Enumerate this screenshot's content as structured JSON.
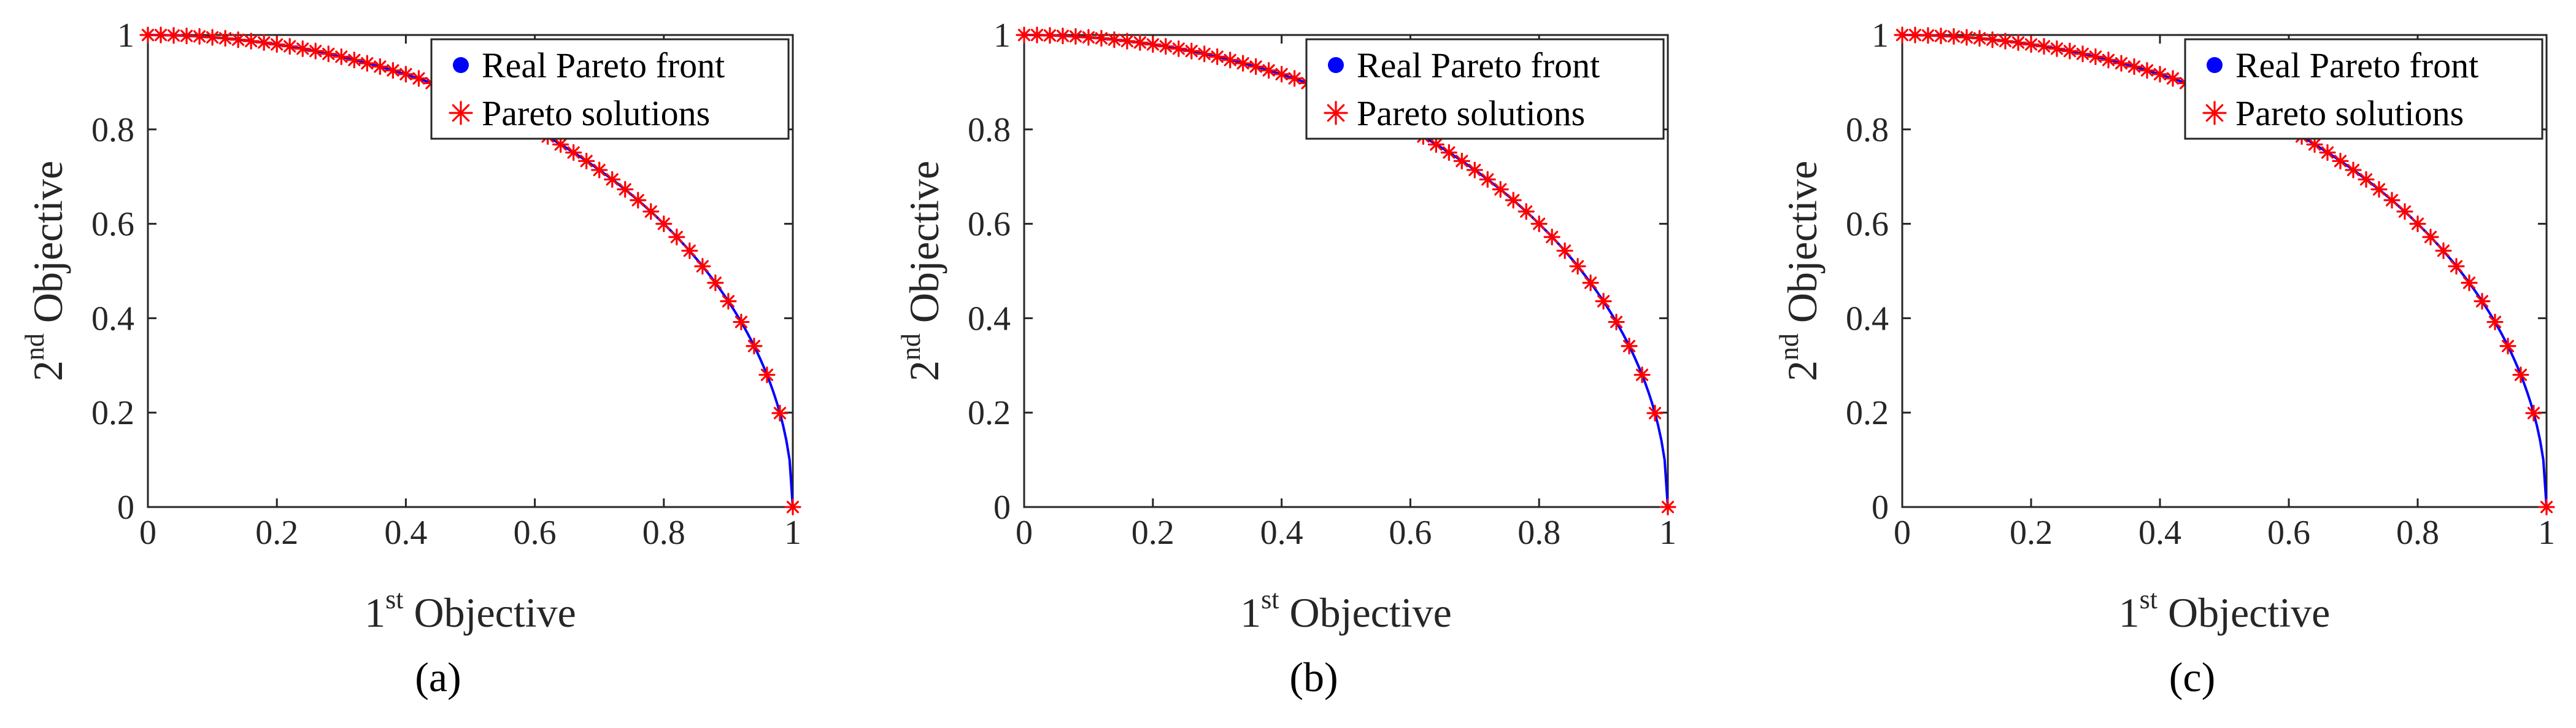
{
  "chart_data": [
    {
      "type": "line",
      "panel_label": "(a)",
      "xlabel": {
        "base": "1",
        "sup": "st",
        "text": " Objective"
      },
      "ylabel": {
        "base": "2",
        "sup": "nd",
        "text": " Objective"
      },
      "xlim": [
        0,
        1
      ],
      "ylim": [
        0,
        1
      ],
      "xticks": [
        "0",
        "0.2",
        "0.4",
        "0.6",
        "0.8",
        "1"
      ],
      "yticks": [
        "0",
        "0.2",
        "0.4",
        "0.6",
        "0.8",
        "1"
      ],
      "legend_position": "top-right",
      "series": [
        {
          "name": "Real Pareto front",
          "kind": "line",
          "color": "#0000ff",
          "function": "y = sqrt(1 - x^2)",
          "x": [
            0,
            0.05,
            0.1,
            0.15,
            0.2,
            0.25,
            0.3,
            0.35,
            0.4,
            0.45,
            0.5,
            0.55,
            0.6,
            0.65,
            0.7,
            0.75,
            0.8,
            0.85,
            0.9,
            0.95,
            1
          ],
          "y": [
            1,
            0.999,
            0.995,
            0.989,
            0.98,
            0.968,
            0.954,
            0.937,
            0.917,
            0.893,
            0.866,
            0.835,
            0.8,
            0.76,
            0.714,
            0.661,
            0.6,
            0.527,
            0.436,
            0.312,
            0
          ]
        },
        {
          "name": "Pareto solutions",
          "kind": "scatter",
          "color": "#ff0000",
          "marker": "asterisk",
          "x": [
            0.0,
            0.02,
            0.04,
            0.06,
            0.08,
            0.1,
            0.12,
            0.14,
            0.16,
            0.18,
            0.2,
            0.22,
            0.24,
            0.26,
            0.28,
            0.3,
            0.32,
            0.34,
            0.36,
            0.38,
            0.4,
            0.42,
            0.44,
            0.46,
            0.48,
            0.5,
            0.52,
            0.54,
            0.56,
            0.58,
            0.6,
            0.62,
            0.64,
            0.66,
            0.68,
            0.7,
            0.72,
            0.74,
            0.76,
            0.78,
            0.8,
            0.82,
            0.84,
            0.86,
            0.88,
            0.9,
            0.92,
            0.94,
            0.96,
            0.98,
            1.0
          ],
          "y": [
            1.0,
            1.0,
            0.999,
            0.998,
            0.997,
            0.995,
            0.993,
            0.99,
            0.987,
            0.984,
            0.98,
            0.976,
            0.971,
            0.966,
            0.96,
            0.954,
            0.947,
            0.94,
            0.933,
            0.925,
            0.917,
            0.908,
            0.898,
            0.888,
            0.877,
            0.866,
            0.854,
            0.842,
            0.828,
            0.815,
            0.8,
            0.785,
            0.768,
            0.751,
            0.733,
            0.714,
            0.694,
            0.673,
            0.65,
            0.626,
            0.6,
            0.572,
            0.543,
            0.51,
            0.475,
            0.436,
            0.392,
            0.341,
            0.28,
            0.199,
            0.0
          ]
        }
      ]
    },
    {
      "type": "line",
      "panel_label": "(b)",
      "xlabel": {
        "base": "1",
        "sup": "st",
        "text": " Objective"
      },
      "ylabel": {
        "base": "2",
        "sup": "nd",
        "text": " Objective"
      },
      "xlim": [
        0,
        1
      ],
      "ylim": [
        0,
        1
      ],
      "xticks": [
        "0",
        "0.2",
        "0.4",
        "0.6",
        "0.8",
        "1"
      ],
      "yticks": [
        "0",
        "0.2",
        "0.4",
        "0.6",
        "0.8",
        "1"
      ],
      "legend_position": "top-right",
      "series": [
        {
          "name": "Real Pareto front",
          "kind": "line",
          "color": "#0000ff",
          "function": "y = sqrt(1 - x^2)",
          "x": [
            0,
            0.05,
            0.1,
            0.15,
            0.2,
            0.25,
            0.3,
            0.35,
            0.4,
            0.45,
            0.5,
            0.55,
            0.6,
            0.65,
            0.7,
            0.75,
            0.8,
            0.85,
            0.9,
            0.95,
            1
          ],
          "y": [
            1,
            0.999,
            0.995,
            0.989,
            0.98,
            0.968,
            0.954,
            0.937,
            0.917,
            0.893,
            0.866,
            0.835,
            0.8,
            0.76,
            0.714,
            0.661,
            0.6,
            0.527,
            0.436,
            0.312,
            0
          ]
        },
        {
          "name": "Pareto solutions",
          "kind": "scatter",
          "color": "#ff0000",
          "marker": "asterisk",
          "x": [
            0.0,
            0.02,
            0.04,
            0.06,
            0.08,
            0.1,
            0.12,
            0.14,
            0.16,
            0.18,
            0.2,
            0.22,
            0.24,
            0.26,
            0.28,
            0.3,
            0.32,
            0.34,
            0.36,
            0.38,
            0.4,
            0.42,
            0.44,
            0.46,
            0.48,
            0.5,
            0.52,
            0.54,
            0.56,
            0.58,
            0.6,
            0.62,
            0.64,
            0.66,
            0.68,
            0.7,
            0.72,
            0.74,
            0.76,
            0.78,
            0.8,
            0.82,
            0.84,
            0.86,
            0.88,
            0.9,
            0.92,
            0.94,
            0.96,
            0.98,
            1.0
          ],
          "y": [
            1.0,
            1.0,
            0.999,
            0.998,
            0.997,
            0.995,
            0.993,
            0.99,
            0.987,
            0.984,
            0.98,
            0.976,
            0.971,
            0.966,
            0.96,
            0.954,
            0.947,
            0.94,
            0.933,
            0.925,
            0.917,
            0.908,
            0.898,
            0.888,
            0.877,
            0.866,
            0.854,
            0.842,
            0.828,
            0.815,
            0.8,
            0.785,
            0.768,
            0.751,
            0.733,
            0.714,
            0.694,
            0.673,
            0.65,
            0.626,
            0.6,
            0.572,
            0.543,
            0.51,
            0.475,
            0.436,
            0.392,
            0.341,
            0.28,
            0.199,
            0.0
          ]
        }
      ]
    },
    {
      "type": "line",
      "panel_label": "(c)",
      "xlabel": {
        "base": "1",
        "sup": "st",
        "text": " Objective"
      },
      "ylabel": {
        "base": "2",
        "sup": "nd",
        "text": " Objective"
      },
      "xlim": [
        0,
        1
      ],
      "ylim": [
        0,
        1
      ],
      "xticks": [
        "0",
        "0.2",
        "0.4",
        "0.6",
        "0.8",
        "1"
      ],
      "yticks": [
        "0",
        "0.2",
        "0.4",
        "0.6",
        "0.8",
        "1"
      ],
      "legend_position": "top-right",
      "series": [
        {
          "name": "Real Pareto front",
          "kind": "line",
          "color": "#0000ff",
          "function": "y = sqrt(1 - x^2)",
          "x": [
            0,
            0.05,
            0.1,
            0.15,
            0.2,
            0.25,
            0.3,
            0.35,
            0.4,
            0.45,
            0.5,
            0.55,
            0.6,
            0.65,
            0.7,
            0.75,
            0.8,
            0.85,
            0.9,
            0.95,
            1
          ],
          "y": [
            1,
            0.999,
            0.995,
            0.989,
            0.98,
            0.968,
            0.954,
            0.937,
            0.917,
            0.893,
            0.866,
            0.835,
            0.8,
            0.76,
            0.714,
            0.661,
            0.6,
            0.527,
            0.436,
            0.312,
            0
          ]
        },
        {
          "name": "Pareto solutions",
          "kind": "scatter",
          "color": "#ff0000",
          "marker": "asterisk",
          "x": [
            0.0,
            0.02,
            0.04,
            0.06,
            0.08,
            0.1,
            0.12,
            0.14,
            0.16,
            0.18,
            0.2,
            0.22,
            0.24,
            0.26,
            0.28,
            0.3,
            0.32,
            0.34,
            0.36,
            0.38,
            0.4,
            0.42,
            0.44,
            0.46,
            0.48,
            0.5,
            0.52,
            0.54,
            0.56,
            0.58,
            0.6,
            0.62,
            0.64,
            0.66,
            0.68,
            0.7,
            0.72,
            0.74,
            0.76,
            0.78,
            0.8,
            0.82,
            0.84,
            0.86,
            0.88,
            0.9,
            0.92,
            0.94,
            0.96,
            0.98,
            1.0
          ],
          "y": [
            1.0,
            1.0,
            0.999,
            0.998,
            0.997,
            0.995,
            0.993,
            0.99,
            0.987,
            0.984,
            0.98,
            0.976,
            0.971,
            0.966,
            0.96,
            0.954,
            0.947,
            0.94,
            0.933,
            0.925,
            0.917,
            0.908,
            0.898,
            0.888,
            0.877,
            0.866,
            0.854,
            0.842,
            0.828,
            0.815,
            0.8,
            0.785,
            0.768,
            0.751,
            0.733,
            0.714,
            0.694,
            0.673,
            0.65,
            0.626,
            0.6,
            0.572,
            0.543,
            0.51,
            0.475,
            0.436,
            0.392,
            0.341,
            0.28,
            0.199,
            0.0
          ]
        }
      ]
    }
  ]
}
